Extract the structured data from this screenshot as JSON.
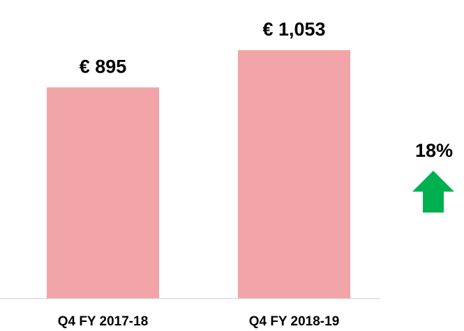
{
  "chart_data": {
    "type": "bar",
    "categories": [
      "Q4 FY 2017-18",
      "Q4 FY 2018-19"
    ],
    "values": [
      895,
      1053
    ],
    "value_labels": [
      "€ 895",
      "€ 1,053"
    ],
    "color": "#f2a5a9",
    "annotation": "18%"
  }
}
